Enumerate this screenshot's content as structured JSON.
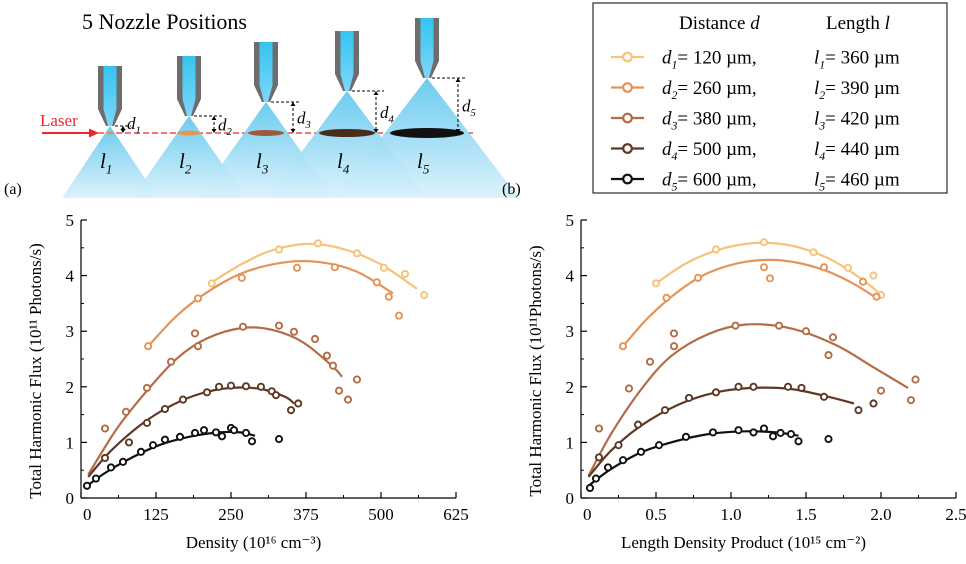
{
  "figure": {
    "title": "5 Nozzle Positions",
    "laser_label": "Laser",
    "nozzles": [
      {
        "d": "d",
        "d_sub": "1",
        "l": "l",
        "l_sub": "1"
      },
      {
        "d": "d",
        "d_sub": "2",
        "l": "l",
        "l_sub": "2"
      },
      {
        "d": "d",
        "d_sub": "3",
        "l": "l",
        "l_sub": "3"
      },
      {
        "d": "d",
        "d_sub": "4",
        "l": "l",
        "l_sub": "4"
      },
      {
        "d": "d",
        "d_sub": "5",
        "l": "l",
        "l_sub": "5"
      }
    ],
    "panel_a_label": "(a)",
    "panel_b_label": "(b)"
  },
  "legend": {
    "header_distance": "Distance",
    "header_distance_var": "d",
    "header_length": "Length",
    "header_length_var": "l",
    "entries": [
      {
        "d_sub": "1",
        "d_text": "= 120 µm,",
        "l_sub": "1",
        "l_text": "= 360 µm",
        "color": "#f7c27a"
      },
      {
        "d_sub": "2",
        "d_text": "= 260 µm,",
        "l_sub": "2",
        "l_text": "= 390 µm",
        "color": "#e49458"
      },
      {
        "d_sub": "3",
        "d_text": "= 380 µm,",
        "l_sub": "3",
        "l_text": "= 420 µm",
        "color": "#b36d46"
      },
      {
        "d_sub": "4",
        "d_text": "= 500 µm,",
        "l_sub": "4",
        "l_text": "= 440 µm",
        "color": "#5e3925"
      },
      {
        "d_sub": "5",
        "d_text": "= 600 µm,",
        "l_sub": "5",
        "l_text": "= 460 µm",
        "color": "#111111"
      }
    ]
  },
  "chart_data": [
    {
      "type": "scatter",
      "panel": "a",
      "xlabel": "Density (10¹⁶ cm⁻³)",
      "ylabel": "Total Harmonic Flux (10¹¹ Photons/s)",
      "xlim": [
        0,
        625
      ],
      "ylim": [
        0,
        5
      ],
      "xticks": [
        0,
        125,
        250,
        375,
        500,
        625
      ],
      "yticks": [
        0,
        1,
        2,
        3,
        4,
        5
      ],
      "series": [
        {
          "name": "d1",
          "color": "#f7c27a",
          "points": [
            [
              218,
              3.86
            ],
            [
              330,
              4.47
            ],
            [
              395,
              4.58
            ],
            [
              460,
              4.4
            ],
            [
              505,
              4.14
            ],
            [
              540,
              4.03
            ],
            [
              572,
              3.65
            ]
          ],
          "fit": [
            [
              218,
              3.88
            ],
            [
              270,
              4.22
            ],
            [
              320,
              4.46
            ],
            [
              380,
              4.57
            ],
            [
              440,
              4.47
            ],
            [
              500,
              4.2
            ],
            [
              560,
              3.76
            ]
          ]
        },
        {
          "name": "d2",
          "color": "#e49458",
          "points": [
            [
              112,
              2.73
            ],
            [
              195,
              3.59
            ],
            [
              268,
              3.96
            ],
            [
              360,
              4.14
            ],
            [
              423,
              4.15
            ],
            [
              493,
              3.88
            ],
            [
              513,
              3.62
            ],
            [
              530,
              3.28
            ]
          ],
          "fit": [
            [
              112,
              2.73
            ],
            [
              160,
              3.28
            ],
            [
              210,
              3.7
            ],
            [
              270,
              4.05
            ],
            [
              340,
              4.24
            ],
            [
              400,
              4.24
            ],
            [
              460,
              4.07
            ],
            [
              520,
              3.68
            ]
          ]
        },
        {
          "name": "d3",
          "color": "#b36d46",
          "points": [
            [
              40,
              1.25
            ],
            [
              75,
              1.55
            ],
            [
              110,
              1.98
            ],
            [
              150,
              2.45
            ],
            [
              190,
              2.96
            ],
            [
              195,
              2.73
            ],
            [
              270,
              3.08
            ],
            [
              330,
              3.1
            ],
            [
              355,
              2.99
            ],
            [
              390,
              2.86
            ],
            [
              410,
              2.56
            ],
            [
              420,
              2.38
            ],
            [
              430,
              1.93
            ],
            [
              445,
              1.77
            ],
            [
              460,
              2.13
            ]
          ],
          "fit": [
            [
              12,
              0.42
            ],
            [
              60,
              1.25
            ],
            [
              110,
              1.93
            ],
            [
              160,
              2.51
            ],
            [
              210,
              2.87
            ],
            [
              270,
              3.06
            ],
            [
              320,
              3.02
            ],
            [
              370,
              2.8
            ],
            [
              420,
              2.36
            ],
            [
              435,
              2.18
            ]
          ]
        },
        {
          "name": "d4",
          "color": "#5e3925",
          "points": [
            [
              40,
              0.72
            ],
            [
              80,
              1.0
            ],
            [
              110,
              1.35
            ],
            [
              140,
              1.6
            ],
            [
              170,
              1.77
            ],
            [
              210,
              1.9
            ],
            [
              230,
              2.0
            ],
            [
              250,
              2.02
            ],
            [
              275,
              2.01
            ],
            [
              300,
              2.0
            ],
            [
              318,
              1.92
            ],
            [
              325,
              1.85
            ],
            [
              350,
              1.58
            ],
            [
              362,
              1.7
            ]
          ],
          "fit": [
            [
              12,
              0.38
            ],
            [
              50,
              0.85
            ],
            [
              100,
              1.32
            ],
            [
              150,
              1.66
            ],
            [
              200,
              1.88
            ],
            [
              250,
              1.98
            ],
            [
              300,
              1.96
            ],
            [
              340,
              1.82
            ],
            [
              355,
              1.7
            ]
          ]
        },
        {
          "name": "d5",
          "color": "#111111",
          "points": [
            [
              10,
              0.22
            ],
            [
              25,
              0.35
            ],
            [
              50,
              0.55
            ],
            [
              70,
              0.65
            ],
            [
              100,
              0.83
            ],
            [
              120,
              0.95
            ],
            [
              140,
              1.05
            ],
            [
              165,
              1.1
            ],
            [
              190,
              1.17
            ],
            [
              205,
              1.22
            ],
            [
              225,
              1.18
            ],
            [
              235,
              1.11
            ],
            [
              250,
              1.26
            ],
            [
              255,
              1.22
            ],
            [
              275,
              1.17
            ],
            [
              285,
              1.02
            ],
            [
              330,
              1.06
            ]
          ],
          "fit": [
            [
              8,
              0.2
            ],
            [
              40,
              0.45
            ],
            [
              80,
              0.7
            ],
            [
              130,
              0.95
            ],
            [
              180,
              1.1
            ],
            [
              230,
              1.18
            ],
            [
              265,
              1.18
            ],
            [
              290,
              1.12
            ]
          ]
        }
      ]
    },
    {
      "type": "scatter",
      "panel": "b",
      "xlabel": "Length Density Product (10¹⁵ cm⁻²)",
      "ylabel": "Total Harmonic Flux (10¹¹Photons/s)",
      "xlim": [
        0,
        2.5
      ],
      "ylim": [
        0,
        5
      ],
      "xticks": [
        "0",
        "0.5",
        "1.0",
        "1.5",
        "2.0",
        "2.5"
      ],
      "yticks": [
        0,
        1,
        2,
        3,
        4,
        5
      ],
      "series": [
        {
          "name": "d1",
          "color": "#f7c27a",
          "points": [
            [
              0.5,
              3.86
            ],
            [
              0.9,
              4.47
            ],
            [
              1.22,
              4.6
            ],
            [
              1.55,
              4.42
            ],
            [
              1.78,
              4.14
            ],
            [
              1.95,
              4.0
            ],
            [
              2.0,
              3.65
            ]
          ],
          "fit": [
            [
              0.5,
              3.86
            ],
            [
              0.7,
              4.22
            ],
            [
              0.9,
              4.45
            ],
            [
              1.1,
              4.57
            ],
            [
              1.3,
              4.58
            ],
            [
              1.5,
              4.47
            ],
            [
              1.7,
              4.24
            ],
            [
              1.9,
              3.88
            ],
            [
              1.98,
              3.7
            ]
          ]
        },
        {
          "name": "d2",
          "color": "#e49458",
          "points": [
            [
              0.28,
              2.73
            ],
            [
              0.57,
              3.6
            ],
            [
              0.78,
              3.96
            ],
            [
              1.22,
              4.15
            ],
            [
              1.26,
              3.95
            ],
            [
              1.62,
              4.15
            ],
            [
              1.88,
              3.89
            ],
            [
              1.97,
              3.62
            ]
          ],
          "fit": [
            [
              0.28,
              2.73
            ],
            [
              0.45,
              3.25
            ],
            [
              0.65,
              3.72
            ],
            [
              0.85,
              4.05
            ],
            [
              1.1,
              4.25
            ],
            [
              1.35,
              4.27
            ],
            [
              1.6,
              4.12
            ],
            [
              1.8,
              3.88
            ],
            [
              1.98,
              3.58
            ]
          ]
        },
        {
          "name": "d3",
          "color": "#b36d46",
          "points": [
            [
              0.12,
              1.25
            ],
            [
              0.32,
              1.97
            ],
            [
              0.46,
              2.45
            ],
            [
              0.62,
              2.96
            ],
            [
              0.62,
              2.73
            ],
            [
              1.03,
              3.1
            ],
            [
              1.32,
              3.1
            ],
            [
              1.5,
              3.0
            ],
            [
              1.68,
              2.89
            ],
            [
              1.65,
              2.57
            ],
            [
              2.0,
              1.93
            ],
            [
              2.2,
              1.76
            ],
            [
              2.23,
              2.13
            ]
          ],
          "fit": [
            [
              0.05,
              0.4
            ],
            [
              0.2,
              1.15
            ],
            [
              0.4,
              1.95
            ],
            [
              0.6,
              2.55
            ],
            [
              0.85,
              2.95
            ],
            [
              1.1,
              3.12
            ],
            [
              1.4,
              3.05
            ],
            [
              1.7,
              2.75
            ],
            [
              1.95,
              2.35
            ],
            [
              2.18,
              1.98
            ]
          ]
        },
        {
          "name": "d4",
          "color": "#5e3925",
          "points": [
            [
              0.12,
              0.73
            ],
            [
              0.25,
              0.95
            ],
            [
              0.38,
              1.32
            ],
            [
              0.56,
              1.58
            ],
            [
              0.72,
              1.8
            ],
            [
              0.9,
              1.9
            ],
            [
              1.05,
              2.0
            ],
            [
              1.15,
              2.0
            ],
            [
              1.38,
              2.0
            ],
            [
              1.47,
              1.98
            ],
            [
              1.62,
              1.82
            ],
            [
              1.85,
              1.58
            ],
            [
              1.95,
              1.7
            ]
          ],
          "fit": [
            [
              0.05,
              0.38
            ],
            [
              0.2,
              0.85
            ],
            [
              0.4,
              1.3
            ],
            [
              0.65,
              1.68
            ],
            [
              0.9,
              1.9
            ],
            [
              1.15,
              1.98
            ],
            [
              1.4,
              1.96
            ],
            [
              1.65,
              1.82
            ],
            [
              1.82,
              1.7
            ]
          ]
        },
        {
          "name": "d5",
          "color": "#111111",
          "points": [
            [
              0.06,
              0.18
            ],
            [
              0.1,
              0.35
            ],
            [
              0.18,
              0.55
            ],
            [
              0.28,
              0.68
            ],
            [
              0.4,
              0.83
            ],
            [
              0.52,
              0.95
            ],
            [
              0.7,
              1.1
            ],
            [
              0.88,
              1.18
            ],
            [
              1.05,
              1.22
            ],
            [
              1.15,
              1.18
            ],
            [
              1.22,
              1.25
            ],
            [
              1.28,
              1.11
            ],
            [
              1.33,
              1.17
            ],
            [
              1.4,
              1.15
            ],
            [
              1.45,
              1.02
            ],
            [
              1.65,
              1.06
            ]
          ],
          "fit": [
            [
              0.05,
              0.22
            ],
            [
              0.2,
              0.52
            ],
            [
              0.4,
              0.82
            ],
            [
              0.6,
              1.0
            ],
            [
              0.85,
              1.15
            ],
            [
              1.1,
              1.2
            ],
            [
              1.3,
              1.18
            ],
            [
              1.45,
              1.12
            ]
          ]
        }
      ]
    }
  ]
}
